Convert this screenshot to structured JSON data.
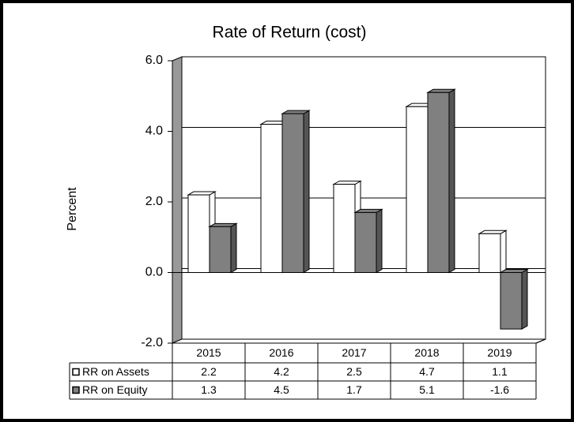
{
  "chart_data": {
    "type": "bar",
    "title": "Rate of Return (cost)",
    "y_label": "Percent",
    "categories": [
      "2015",
      "2016",
      "2017",
      "2018",
      "2019"
    ],
    "series": [
      {
        "name": "RR on Assets",
        "color": "#ffffff",
        "values": [
          2.2,
          4.2,
          2.5,
          4.7,
          1.1
        ]
      },
      {
        "name": "RR on Equity",
        "color": "#808080",
        "values": [
          1.3,
          4.5,
          1.7,
          5.1,
          -1.6
        ]
      }
    ],
    "ylim": [
      -2,
      6
    ],
    "yticks": [
      {
        "value": -2,
        "label": "-2.0"
      },
      {
        "value": 0,
        "label": "0.0"
      },
      {
        "value": 2,
        "label": "2.0"
      },
      {
        "value": 4,
        "label": "4.0"
      },
      {
        "value": 6,
        "label": "6.0"
      }
    ],
    "grid": true
  }
}
